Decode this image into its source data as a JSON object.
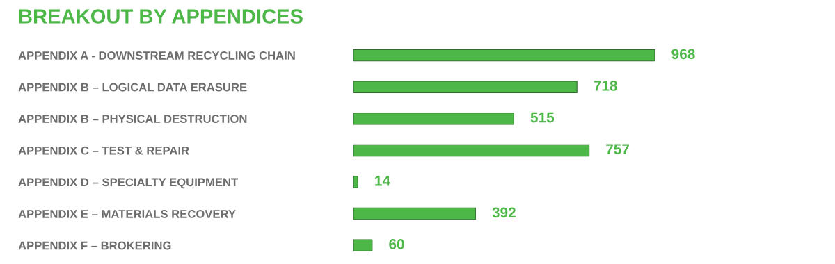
{
  "chart_data": {
    "type": "bar",
    "orientation": "horizontal",
    "data_labels": true,
    "title": "BREAKOUT BY APPENDICES",
    "categories": [
      "APPENDIX A - DOWNSTREAM RECYCLING CHAIN",
      "APPENDIX B – LOGICAL DATA ERASURE",
      "APPENDIX B – PHYSICAL DESTRUCTION",
      "APPENDIX C – TEST & REPAIR",
      "APPENDIX D – SPECIALTY EQUIPMENT",
      "APPENDIX E – MATERIALS RECOVERY",
      "APPENDIX F – BROKERING"
    ],
    "values": [
      968,
      718,
      515,
      757,
      14,
      392,
      60
    ],
    "color": "#4db848",
    "grid": false,
    "legend": false
  }
}
